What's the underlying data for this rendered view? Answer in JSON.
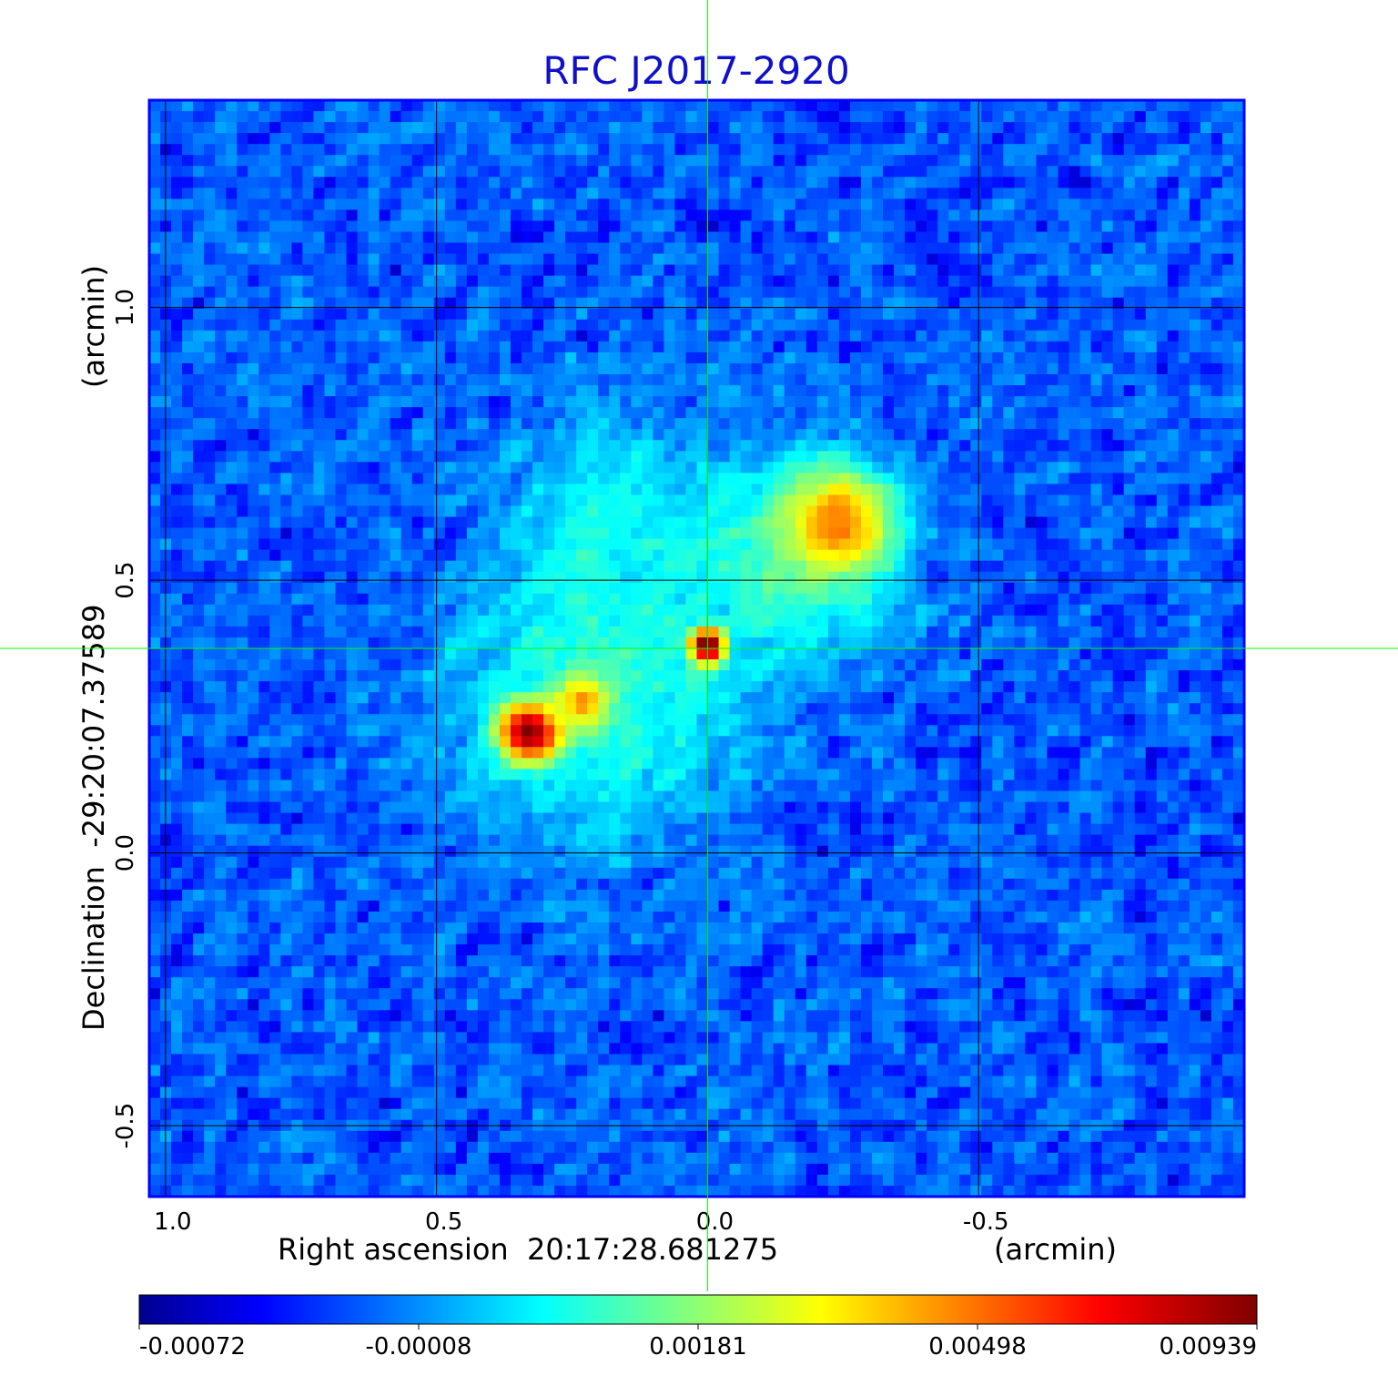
{
  "chart_data": {
    "type": "heatmap",
    "title": "RFC J2017-2920",
    "xlabel": "Right ascension  20:17:28.681275",
    "xunit": "(arcmin)",
    "ylabel": "Declination  -29:20:07.37589",
    "yunit": "(arcmin)",
    "xlim": [
      1.03,
      -0.99
    ],
    "ylim": [
      -0.63,
      1.38
    ],
    "x_ticks": [
      1.0,
      0.5,
      0.0,
      -0.5
    ],
    "x_tick_labels": [
      "1.0",
      "0.5",
      "0.0",
      "-0.5"
    ],
    "y_ticks": [
      -0.5,
      0.0,
      0.5,
      1.0
    ],
    "y_tick_labels": [
      "-0.5",
      "0.0",
      "0.5",
      "1.0"
    ],
    "grid": true,
    "crosshair": {
      "x": 0.0,
      "y": 0.375
    },
    "colorbar": {
      "position": "bottom",
      "colormap": "jet",
      "vmin": -0.00072,
      "vmax": 0.00939,
      "tick_labels": [
        "-0.00072",
        "-0.00008",
        "0.00181",
        "0.00498",
        "0.00939"
      ]
    },
    "sources": [
      {
        "x": 0.0,
        "y": 0.38,
        "peak": 0.00939,
        "sigma": 0.02
      },
      {
        "x": 0.33,
        "y": 0.22,
        "peak": 0.0085,
        "sigma": 0.035
      },
      {
        "x": 0.23,
        "y": 0.28,
        "peak": 0.0036,
        "sigma": 0.03
      },
      {
        "x": -0.25,
        "y": 0.61,
        "peak": 0.0042,
        "sigma": 0.06
      },
      {
        "x": -0.17,
        "y": 0.55,
        "peak": 0.0018,
        "sigma": 0.12
      },
      {
        "x": 0.2,
        "y": 0.3,
        "peak": 0.0015,
        "sigma": 0.18
      },
      {
        "x": 0.18,
        "y": 0.65,
        "peak": 0.0009,
        "sigma": 0.12
      }
    ],
    "background_level": -0.0001
  },
  "colors": {
    "title": "#1010c8",
    "frame": "#0000ff",
    "grid": "#000000",
    "crosshair": "#00ff00"
  }
}
